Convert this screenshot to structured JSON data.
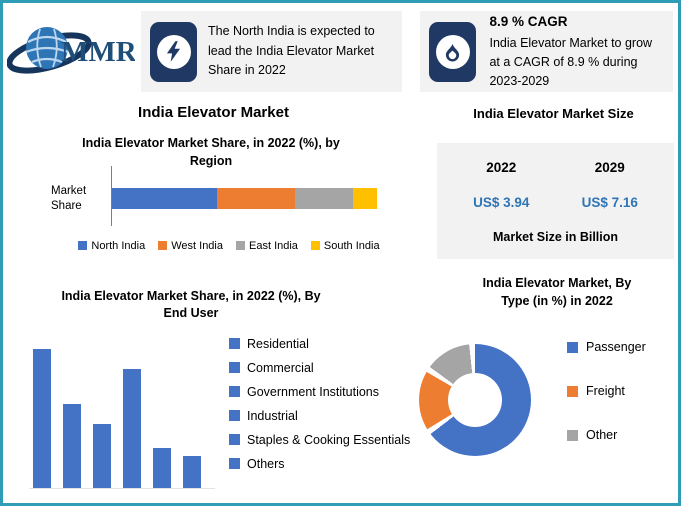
{
  "theme": {
    "frame_border": "#2f9db6",
    "panel_bg": "#f2f2f2",
    "icon_navy": "#203864",
    "value_blue": "#2e75b6",
    "series_blue": "#4472c4",
    "series_orange": "#ed7d31",
    "series_gray": "#a5a5a5",
    "series_yellow": "#ffc000"
  },
  "header": {
    "logo": {
      "text": "MMR"
    },
    "highlight": {
      "text": "The North India is expected to lead the India Elevator Market Share in 2022"
    },
    "cagr": {
      "title": "8.9 % CAGR",
      "text": "India Elevator Market to grow at a CAGR of 8.9 % during 2023-2029"
    }
  },
  "left": {
    "market_title": "India Elevator Market"
  },
  "market_size": {
    "title": "India Elevator Market Size",
    "col1_year": "2022",
    "col2_year": "2029",
    "col1_value": "US$ 3.94",
    "col2_value": "US$ 7.16",
    "caption": "Market Size in Billion"
  },
  "chart_data": [
    {
      "type": "bar",
      "subtype": "stacked-horizontal",
      "title": "India Elevator Market Share, in 2022 (%), by Region",
      "ylabel": "Market Share",
      "categories": [
        "Market Share"
      ],
      "series": [
        {
          "name": "North India",
          "value": 40,
          "color": "#4472c4"
        },
        {
          "name": "West India",
          "value": 29,
          "color": "#ed7d31"
        },
        {
          "name": "East India",
          "value": 22,
          "color": "#a5a5a5"
        },
        {
          "name": "South India",
          "value": 9,
          "color": "#ffc000"
        }
      ],
      "xlim": [
        0,
        100
      ],
      "legend_position": "bottom"
    },
    {
      "type": "bar",
      "title": "India Elevator Market Share, in 2022 (%), By End User",
      "categories": [
        "Residential",
        "Commercial",
        "Government Institutions",
        "Industrial",
        "Staples & Cooking Essentials",
        "Others"
      ],
      "values": [
        35,
        21,
        16,
        30,
        10,
        8
      ],
      "bar_color": "#4472c4",
      "ylim": [
        0,
        40
      ],
      "legend_position": "right"
    },
    {
      "type": "pie",
      "subtype": "donut",
      "title": "India Elevator Market, By Type (in %) in 2022",
      "labels": [
        "Passenger",
        "Freight",
        "Other"
      ],
      "values": [
        68,
        18,
        14
      ],
      "colors": [
        "#4472c4",
        "#ed7d31",
        "#a5a5a5"
      ],
      "legend_position": "right"
    }
  ]
}
